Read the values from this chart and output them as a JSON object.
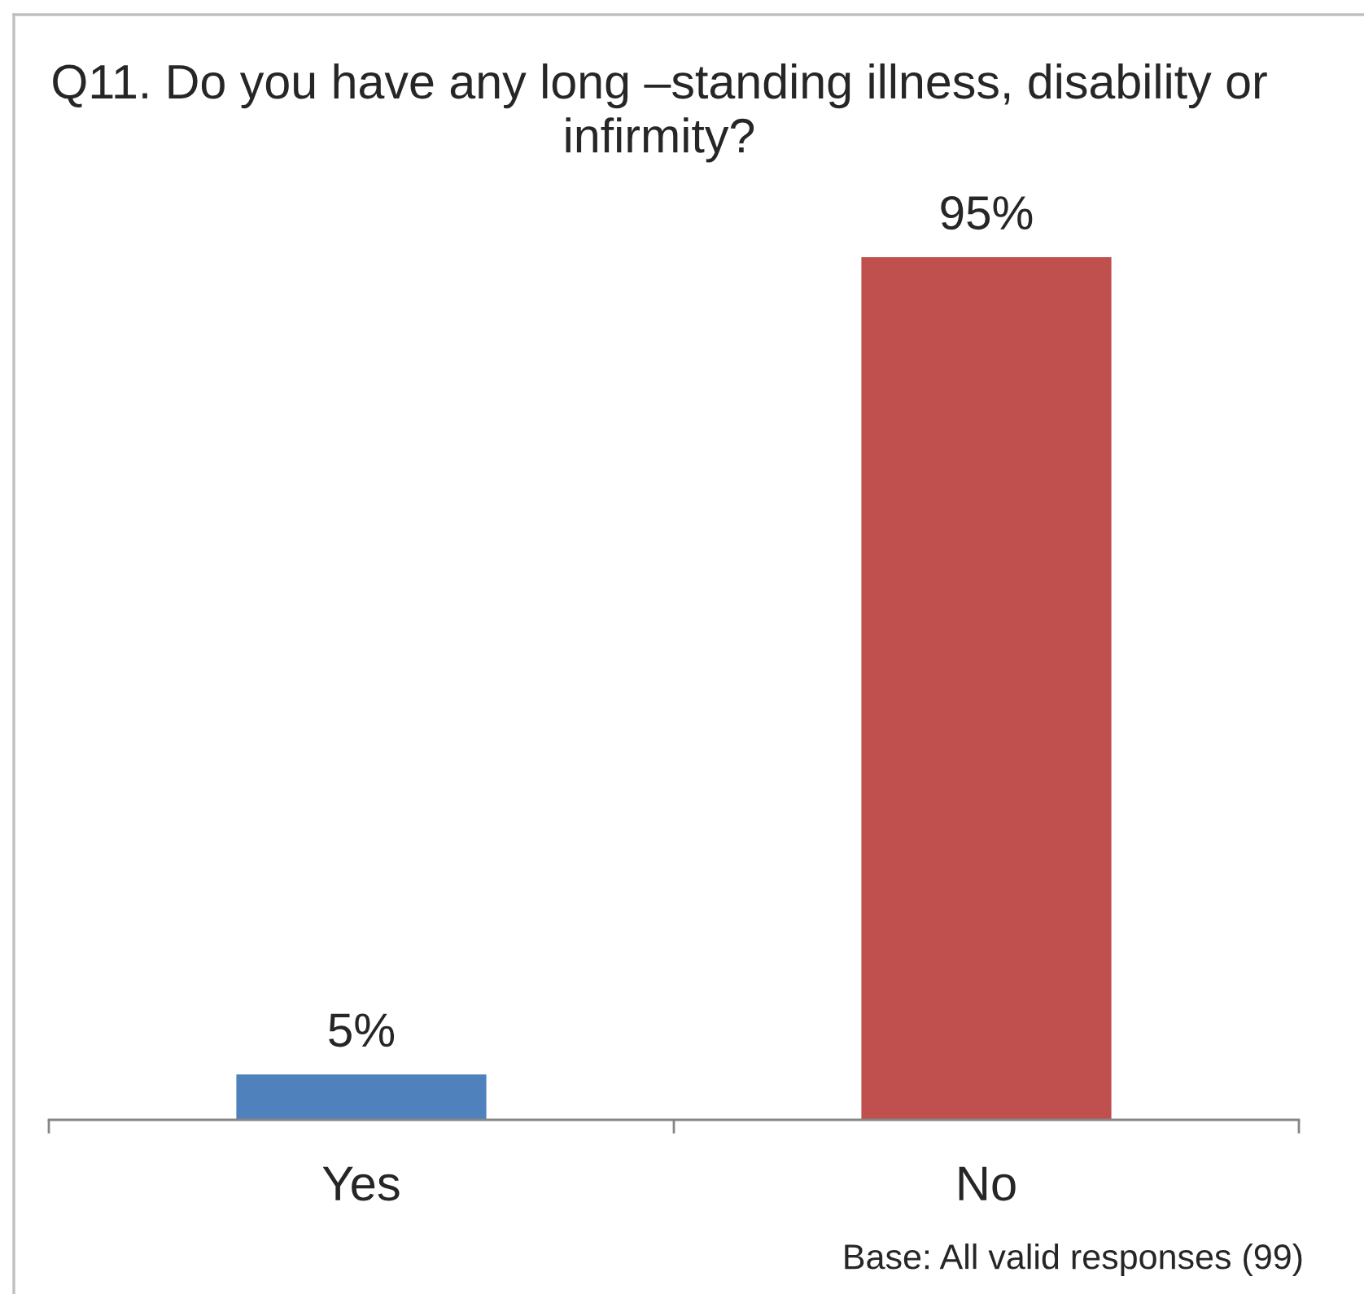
{
  "chart_data": {
    "type": "bar",
    "title": "Q11. Do you have any long –standing illness, disability or infirmity?",
    "categories": [
      "Yes",
      "No"
    ],
    "values": [
      5,
      95
    ],
    "colors": [
      "#4f81bd",
      "#c0504d"
    ],
    "value_labels": [
      "5%",
      "95%"
    ],
    "tick_labels": "x",
    "grid": false,
    "legend": false,
    "annotations": [
      "Base: All valid responses (99)"
    ]
  }
}
